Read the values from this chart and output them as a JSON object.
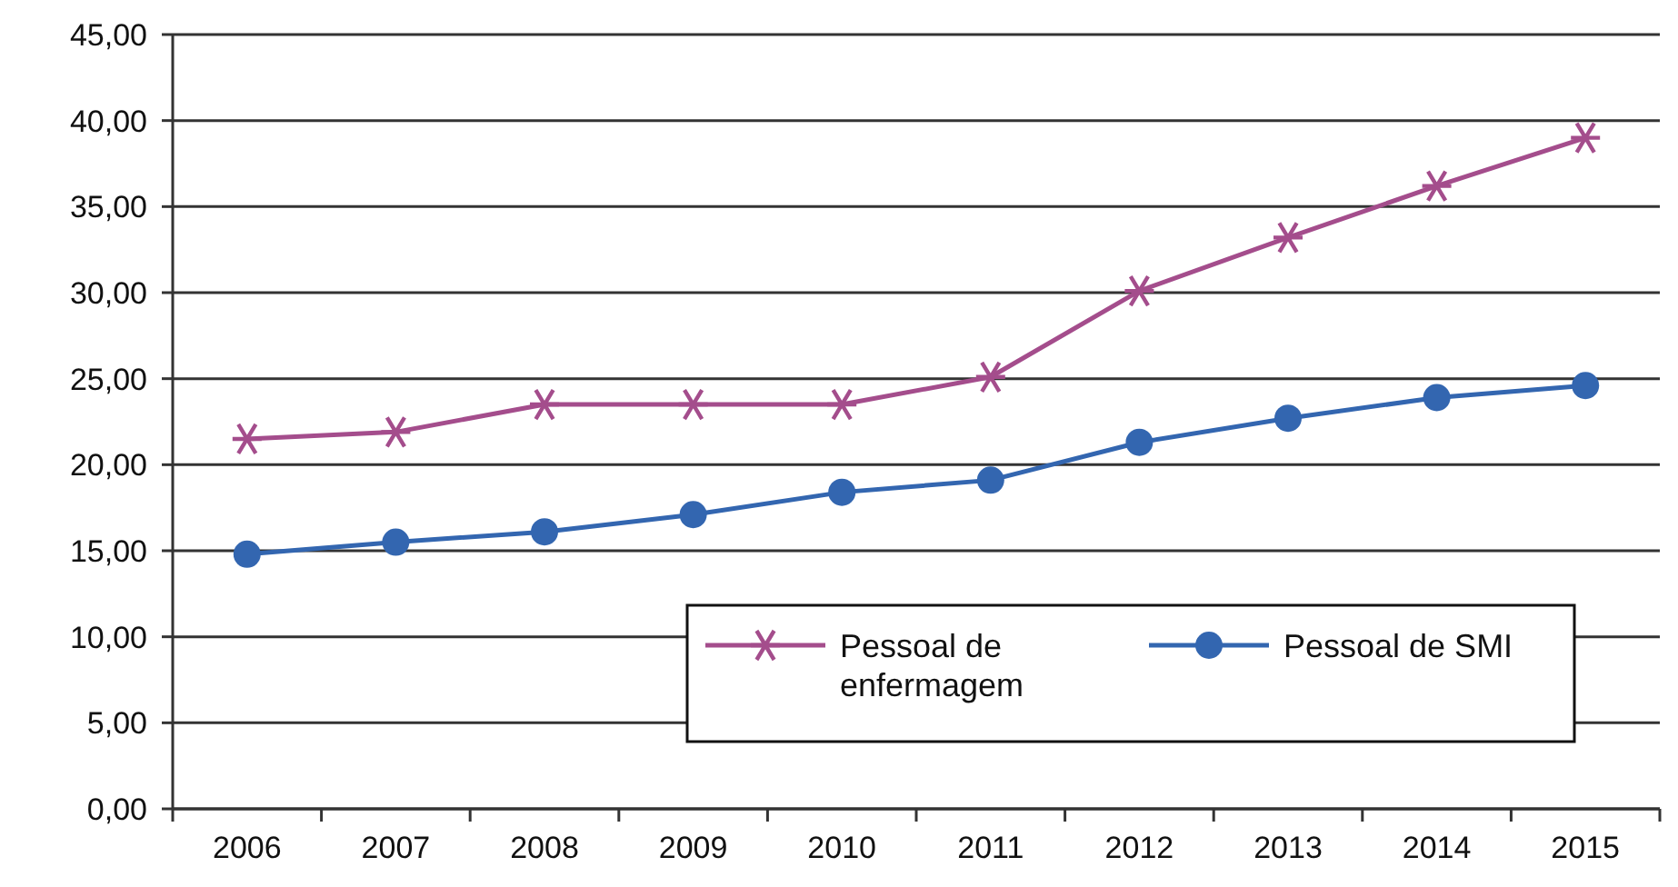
{
  "chart_data": {
    "type": "line",
    "categories": [
      "2006",
      "2007",
      "2008",
      "2009",
      "2010",
      "2011",
      "2012",
      "2013",
      "2014",
      "2015"
    ],
    "series": [
      {
        "name": "Pessoal de enfermagem",
        "color": "#a44d8c",
        "marker": "cross",
        "values": [
          21.5,
          21.9,
          23.5,
          23.5,
          23.5,
          25.1,
          30.1,
          33.2,
          36.2,
          39.0
        ]
      },
      {
        "name": "Pessoal de SMI",
        "color": "#3366b0",
        "marker": "circle",
        "values": [
          14.8,
          15.5,
          16.1,
          17.1,
          18.4,
          19.1,
          21.3,
          22.7,
          23.9,
          24.6
        ]
      }
    ],
    "ylim": [
      0,
      45
    ],
    "yticks": [
      {
        "value": 0,
        "label": "0,00"
      },
      {
        "value": 5,
        "label": "5,00"
      },
      {
        "value": 10,
        "label": "10,00"
      },
      {
        "value": 15,
        "label": "15,00"
      },
      {
        "value": 20,
        "label": "20,00"
      },
      {
        "value": 25,
        "label": "25,00"
      },
      {
        "value": 30,
        "label": "30,00"
      },
      {
        "value": 35,
        "label": "35,00"
      },
      {
        "value": 40,
        "label": "40,00"
      },
      {
        "value": 45,
        "label": "45,00"
      }
    ],
    "grid": "y",
    "legend": "bottom right",
    "line_style": "solid"
  }
}
